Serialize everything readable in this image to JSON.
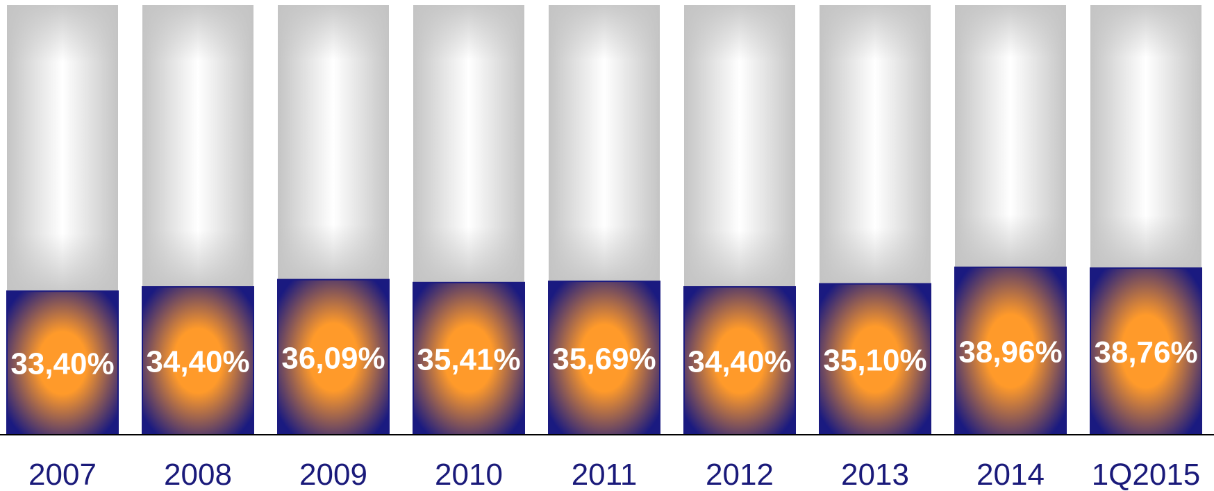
{
  "chart_data": {
    "type": "bar",
    "stacked": "100% stacked",
    "categories": [
      "2007",
      "2008",
      "2009",
      "2010",
      "2011",
      "2012",
      "2013",
      "2014",
      "1Q2015"
    ],
    "series": [
      {
        "values": [
          33.4,
          34.4,
          36.09,
          35.41,
          35.69,
          34.4,
          35.1,
          38.96,
          38.76
        ],
        "labels": [
          "33,40%",
          "34,40%",
          "36,09%",
          "35,41%",
          "35,69%",
          "34,40%",
          "35,10%",
          "38,96%",
          "38,76%"
        ]
      },
      {
        "values": [
          66.6,
          65.6,
          63.91,
          64.59,
          64.31,
          65.6,
          64.9,
          61.04,
          61.24
        ]
      }
    ],
    "ylim": [
      0,
      100
    ],
    "grid": false,
    "legend": "none",
    "colors": {
      "share_edge": "#1a1a80",
      "share_center": "#ff9a2a",
      "rest_edge": "#c4c4c4",
      "rest_center": "#ffffff",
      "axis": "#000000",
      "tick_label": "#1a1a7a",
      "value_label": "#ffffff"
    }
  }
}
